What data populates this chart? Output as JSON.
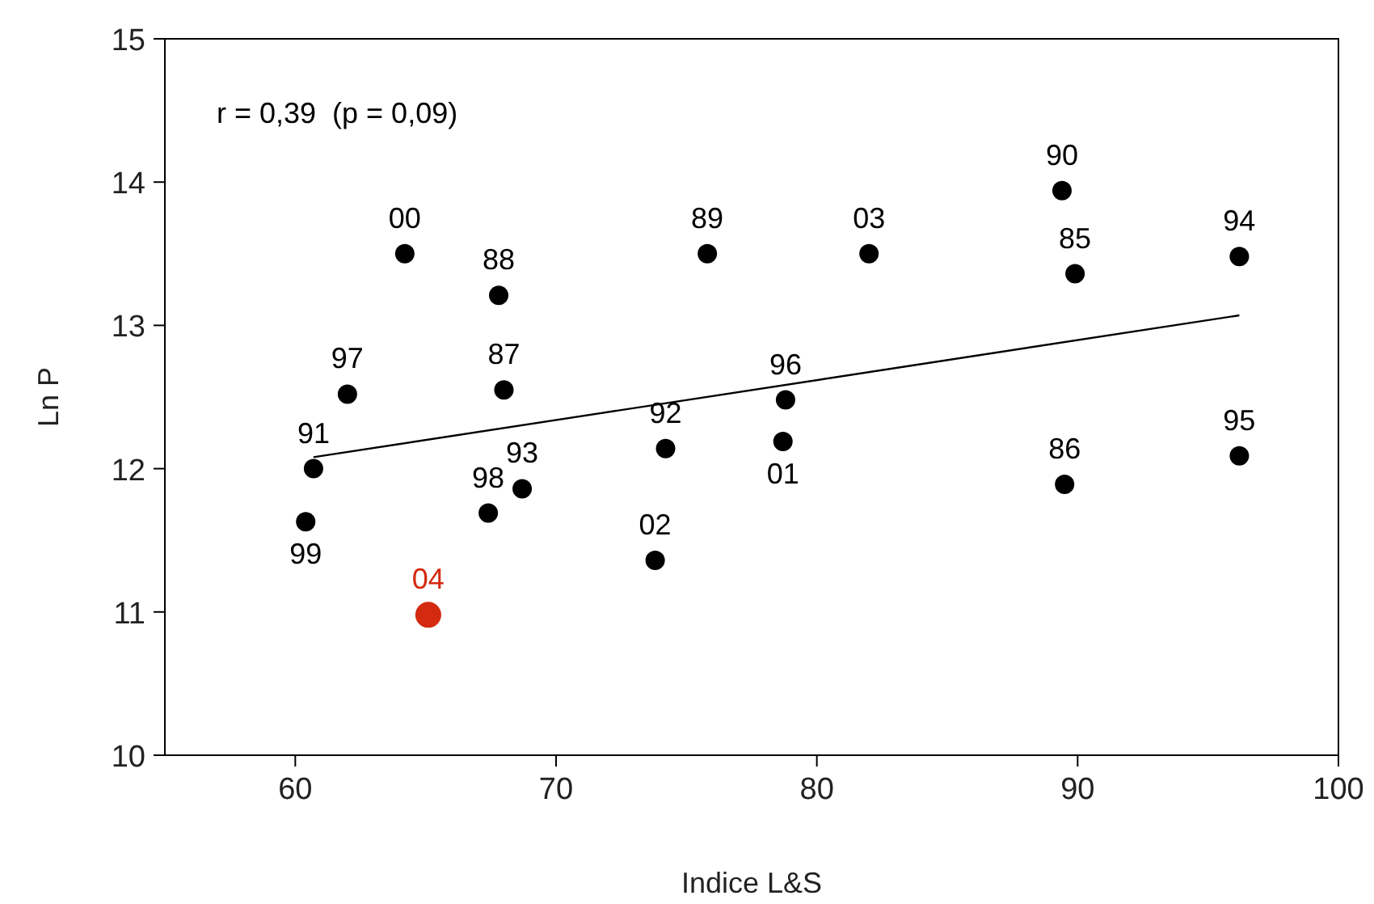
{
  "chart_data": {
    "type": "scatter",
    "xlabel": "Indice L&S",
    "ylabel": "Ln P",
    "xlim": [
      55,
      100
    ],
    "ylim": [
      10,
      15
    ],
    "xticks": [
      60,
      70,
      80,
      90,
      100
    ],
    "yticks": [
      10,
      11,
      12,
      13,
      14,
      15
    ],
    "grid": false,
    "marker": "circle",
    "annotations": [
      "r = 0,39  (p = 0,09)",
      {
        "text": "00",
        "x": 64.2,
        "y": 13.5
      },
      {
        "text": "88",
        "x": 67.8,
        "y": 13.21
      },
      {
        "text": "89",
        "x": 75.8,
        "y": 13.5
      },
      {
        "text": "03",
        "x": 82.0,
        "y": 13.5
      },
      {
        "text": "90",
        "x": 89.4,
        "y": 13.94
      },
      {
        "text": "85",
        "x": 89.9,
        "y": 13.36
      },
      {
        "text": "94",
        "x": 96.2,
        "y": 13.48
      },
      {
        "text": "97",
        "x": 62.0,
        "y": 12.52
      },
      {
        "text": "87",
        "x": 68.0,
        "y": 12.55
      },
      {
        "text": "96",
        "x": 78.8,
        "y": 12.48
      },
      {
        "text": "01",
        "x": 78.7,
        "y": 12.19
      },
      {
        "text": "92",
        "x": 74.2,
        "y": 12.14
      },
      {
        "text": "91",
        "x": 60.7,
        "y": 12.0
      },
      {
        "text": "99",
        "x": 60.4,
        "y": 11.63
      },
      {
        "text": "98",
        "x": 67.4,
        "y": 11.69
      },
      {
        "text": "93",
        "x": 68.7,
        "y": 11.86
      },
      {
        "text": "02",
        "x": 73.8,
        "y": 11.36
      },
      {
        "text": "86",
        "x": 89.5,
        "y": 11.89
      },
      {
        "text": "95",
        "x": 96.2,
        "y": 12.09
      },
      {
        "text": "04",
        "x": 65.1,
        "y": 10.98
      }
    ],
    "series": [
      {
        "color": "#000000",
        "x": [
          64.2,
          67.8,
          75.8,
          82.0,
          89.4,
          89.9,
          96.2,
          62.0,
          68.0,
          78.8,
          78.7,
          74.2,
          60.7,
          60.4,
          67.4,
          68.7,
          73.8,
          89.5,
          96.2
        ],
        "values": [
          13.5,
          13.21,
          13.5,
          13.5,
          13.94,
          13.36,
          13.48,
          12.52,
          12.55,
          12.48,
          12.19,
          12.14,
          12.0,
          11.63,
          11.69,
          11.86,
          11.36,
          11.89,
          12.09
        ]
      },
      {
        "color": "#d42a10",
        "x": [
          65.1
        ],
        "values": [
          10.98
        ]
      },
      {
        "type": "line",
        "color": "#000000",
        "line_style": "solid",
        "marker": "none",
        "x": [
          60.7,
          96.2
        ],
        "values": [
          12.08,
          13.07
        ]
      }
    ]
  }
}
